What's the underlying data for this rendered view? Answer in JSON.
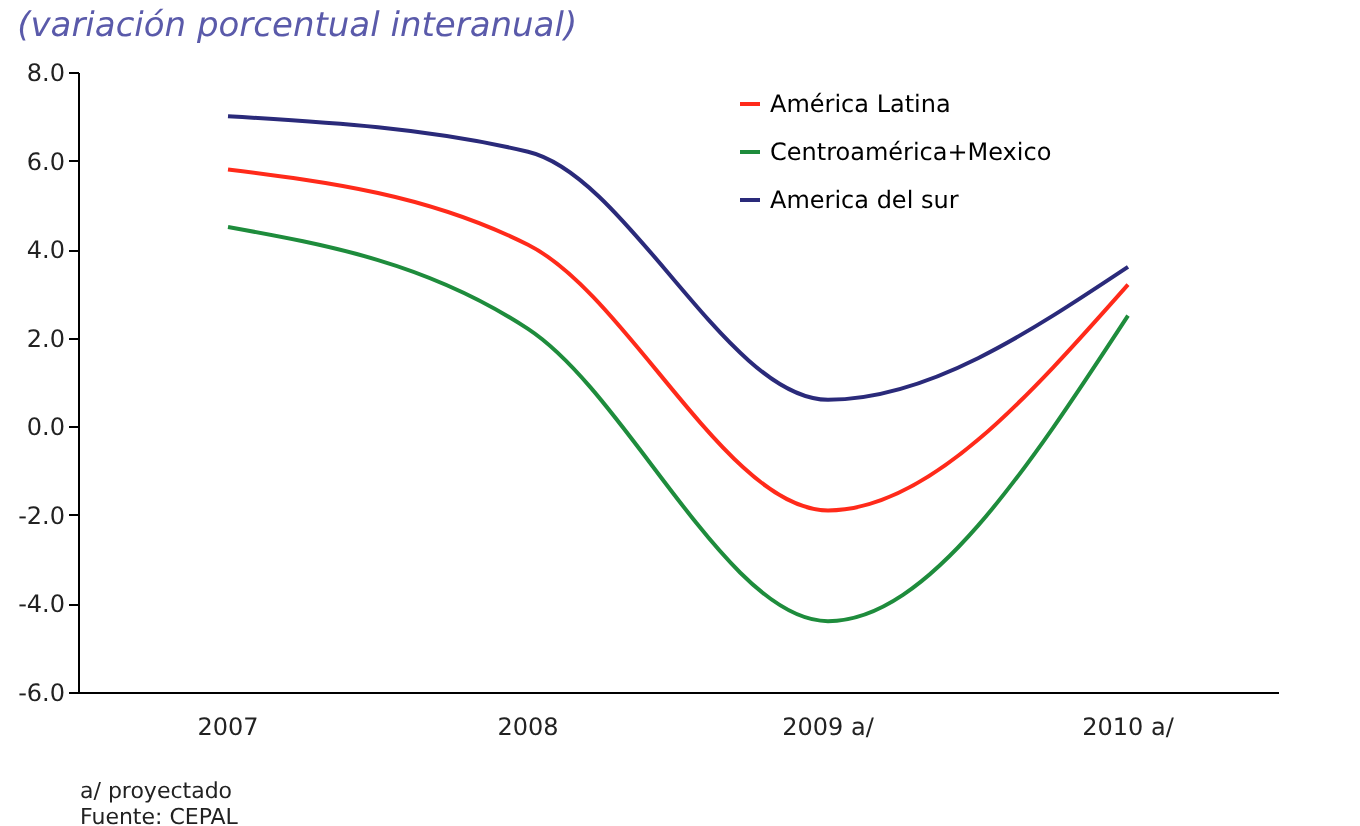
{
  "chart_data": {
    "type": "line",
    "subtitle": "(variación porcentual interanual)",
    "categories": [
      "2007",
      "2008",
      "2009 a/",
      "2010 a/"
    ],
    "series": [
      {
        "name": "América Latina",
        "color": "#ff2a1a",
        "values": [
          5.8,
          4.1,
          -1.9,
          3.2
        ]
      },
      {
        "name": "Centroamérica+Mexico",
        "color": "#1e8c3c",
        "values": [
          4.5,
          2.2,
          -4.4,
          2.5
        ]
      },
      {
        "name": "America del sur",
        "color": "#2a2a7a",
        "values": [
          7.0,
          6.2,
          0.6,
          3.6
        ]
      }
    ],
    "ylim": [
      -6,
      8
    ],
    "yticks": [
      {
        "value": -6,
        "label": "-6.0"
      },
      {
        "value": -4,
        "label": "-4.0"
      },
      {
        "value": -2,
        "label": "-2.0"
      },
      {
        "value": 0,
        "label": "0.0"
      },
      {
        "value": 2,
        "label": "2.0"
      },
      {
        "value": 4,
        "label": "4.0"
      },
      {
        "value": 6,
        "label": "6.0"
      },
      {
        "value": 8,
        "label": "8.0"
      }
    ],
    "grid": false,
    "legend": "top right",
    "marker": "none",
    "line_style": "solid",
    "annotations": [
      "a/ proyectado",
      "Fuente: CEPAL"
    ]
  }
}
